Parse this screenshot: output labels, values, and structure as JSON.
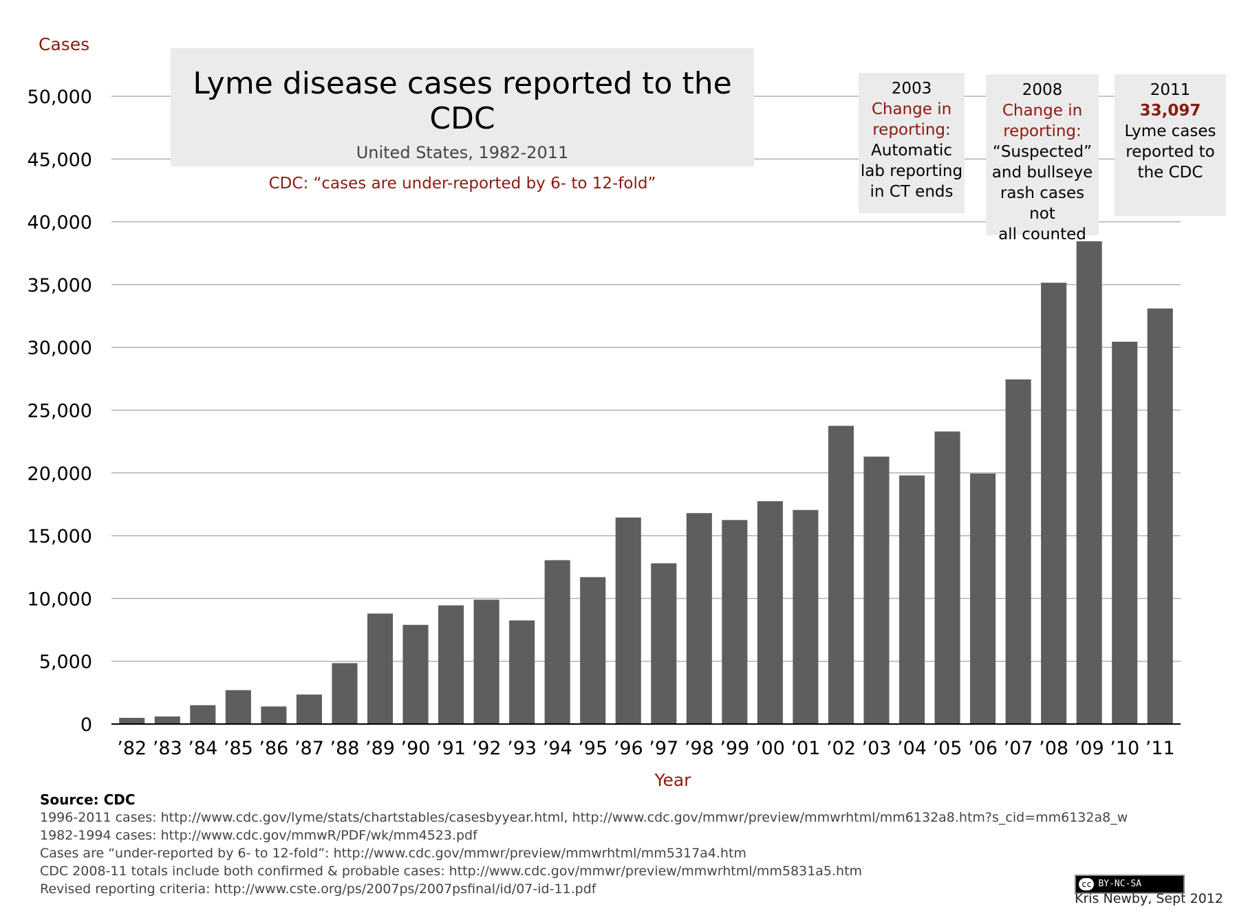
{
  "chart_data": {
    "type": "bar",
    "title": "Lyme disease cases reported to the CDC",
    "subtitle": "United States, 1982-2011",
    "note": "CDC: “cases are under-reported by 6- to 12-fold”",
    "ylabel": "Cases",
    "xlabel": "Year",
    "ylim": [
      0,
      50000
    ],
    "yticks": [
      0,
      5000,
      10000,
      15000,
      20000,
      25000,
      30000,
      35000,
      40000,
      45000,
      50000
    ],
    "ytick_labels": [
      "0",
      "5,000",
      "10,000",
      "15,000",
      "20,000",
      "25,000",
      "30,000",
      "35,000",
      "40,000",
      "45,000",
      "50,000"
    ],
    "grid": true,
    "categories": [
      "’82",
      "’83",
      "’84",
      "’85",
      "’86",
      "’87",
      "’88",
      "’89",
      "’90",
      "’91",
      "’92",
      "’93",
      "’94",
      "’95",
      "’96",
      "’97",
      "’98",
      "’99",
      "’00",
      "’01",
      "’02",
      "’03",
      "’04",
      "’05",
      "’06",
      "’07",
      "’08",
      "’09",
      "’10",
      "’11"
    ],
    "values": [
      491,
      600,
      1500,
      2700,
      1400,
      2350,
      4850,
      8800,
      7900,
      9450,
      9900,
      8250,
      13050,
      11700,
      16450,
      12800,
      16800,
      16250,
      17750,
      17050,
      23750,
      21300,
      19800,
      23300,
      19950,
      27450,
      35150,
      38450,
      30450,
      33097
    ],
    "bar_color": "#5e5e5e",
    "annotations": [
      {
        "year": "2003",
        "red_lines": [
          "Change in",
          "reporting:"
        ],
        "lines": [
          "Automatic",
          "lab reporting",
          "in CT ends"
        ]
      },
      {
        "year": "2008",
        "red_lines": [
          "Change in",
          "reporting:"
        ],
        "lines": [
          "“Suspected”",
          "and bullseye",
          "rash cases not",
          "all counted"
        ]
      },
      {
        "year": "2011",
        "red_lines": [
          "33,097"
        ],
        "lines": [
          "Lyme cases",
          "reported to",
          "the CDC"
        ]
      }
    ]
  },
  "source": {
    "heading": "Source: CDC",
    "lines": [
      "1996-2011 cases: http://www.cdc.gov/lyme/stats/chartstables/casesbyyear.html, http://www.cdc.gov/mmwr/preview/mmwrhtml/mm6132a8.htm?s_cid=mm6132a8_w",
      "1982-1994 cases: http://www.cdc.gov/mmwR/PDF/wk/mm4523.pdf",
      "Cases are “under-reported by 6- to 12-fold”: http://www.cdc.gov/mmwr/preview/mmwrhtml/mm5317a4.htm",
      "CDC 2008-11 totals include both confirmed & probable cases: http://www.cdc.gov/mmwr/preview/mmwrhtml/mm5831a5.htm",
      "Revised reporting criteria: http://www.cste.org/ps/2007ps/2007psfinal/id/07-id-11.pdf"
    ]
  },
  "license": {
    "cc": "cc",
    "text": "BY-NC-SA"
  },
  "credit": "Kris Newby, Sept 2012",
  "colors": {
    "accent_red": "#8b1a10",
    "box_gray": "#ebebeb",
    "grid": "#b0b0b0"
  }
}
